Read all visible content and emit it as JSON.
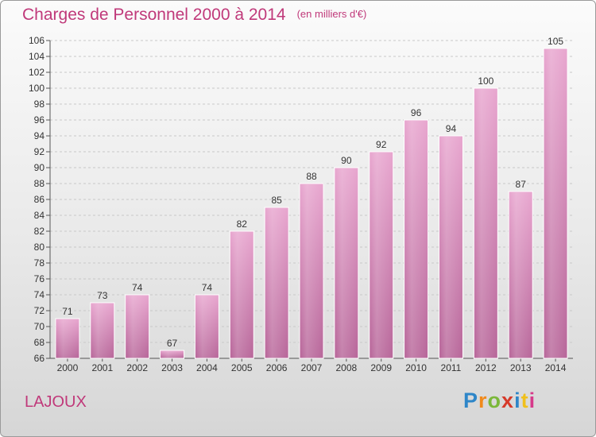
{
  "header": {
    "title": "Charges de Personnel 2000 à 2014",
    "unit": "(en milliers d'€)"
  },
  "footer": {
    "commune": "LAJOUX",
    "logo_letters": [
      "P",
      "r",
      "o",
      "x",
      "i",
      "t",
      "i"
    ],
    "logo_colors": [
      "#2e86c8",
      "#f08a1c",
      "#7bb83a",
      "#d63a2a",
      "#2e86c8",
      "#f0c01c",
      "#d63a8a"
    ]
  },
  "chart_data": {
    "type": "bar",
    "categories": [
      "2000",
      "2001",
      "2002",
      "2003",
      "2004",
      "2005",
      "2006",
      "2007",
      "2008",
      "2009",
      "2010",
      "2011",
      "2012",
      "2013",
      "2014"
    ],
    "values": [
      71,
      73,
      74,
      67,
      74,
      82,
      85,
      88,
      90,
      92,
      96,
      94,
      100,
      87,
      105
    ],
    "title": "Charges de Personnel 2000 à 2014",
    "subtitle": "(en milliers d'€)",
    "xlabel": "",
    "ylabel": "",
    "ylim": [
      66,
      106
    ],
    "ytick_step": 2,
    "grid": true,
    "bar_color": "#d88ab8",
    "grid_color": "#c8c8c8",
    "text_color": "#c0397a"
  }
}
